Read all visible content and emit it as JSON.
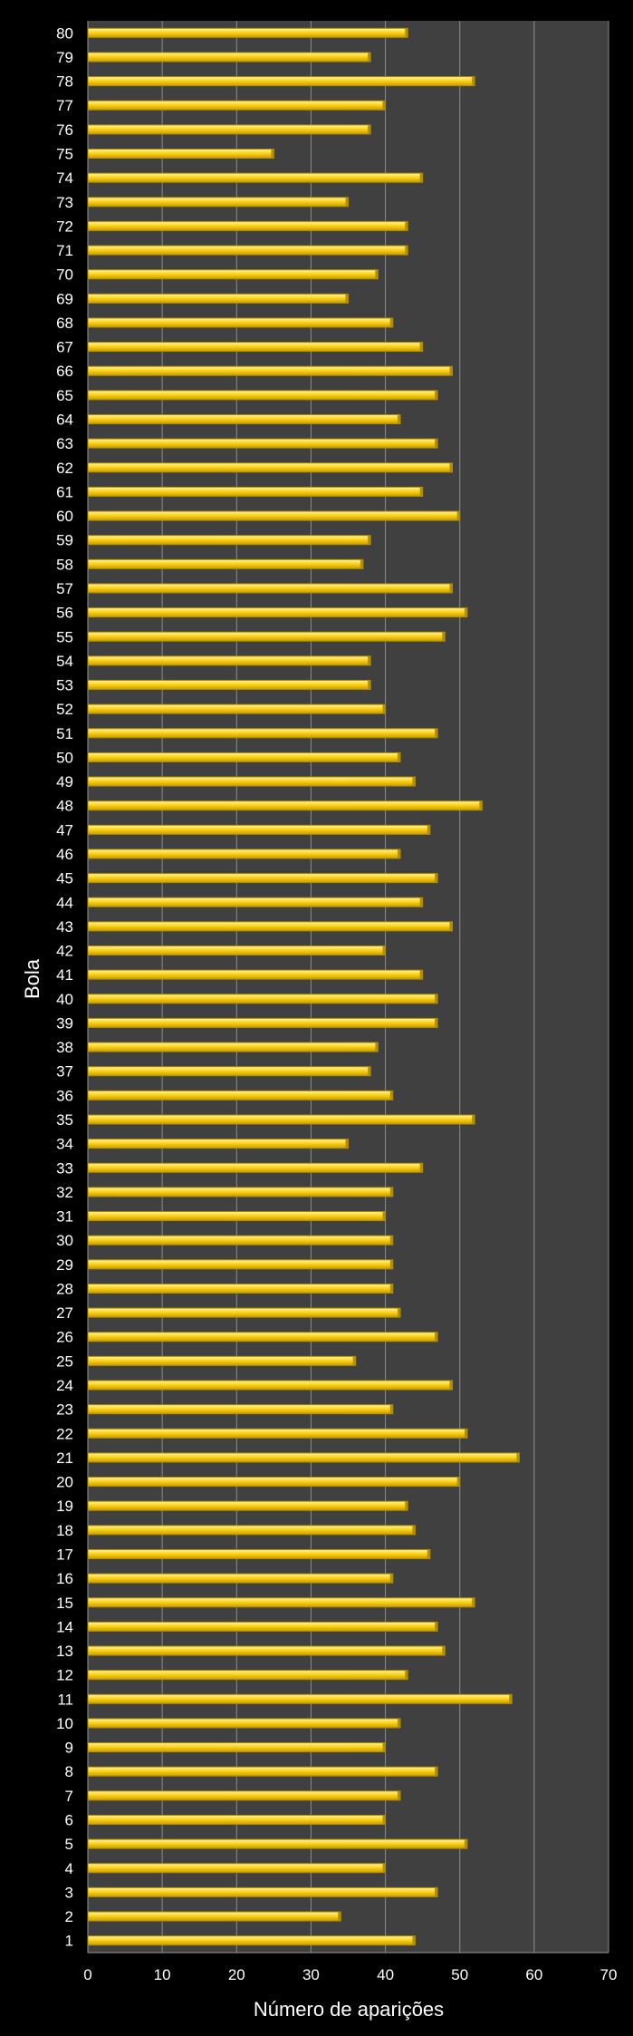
{
  "chart_data": {
    "type": "bar",
    "orientation": "horizontal",
    "title": "",
    "xlabel": "Número de aparições",
    "ylabel": "Bola",
    "xlim": [
      0,
      70
    ],
    "xticks": [
      0,
      10,
      20,
      30,
      40,
      50,
      60,
      70
    ],
    "grid": true,
    "categories": [
      "1",
      "2",
      "3",
      "4",
      "5",
      "6",
      "7",
      "8",
      "9",
      "10",
      "11",
      "12",
      "13",
      "14",
      "15",
      "16",
      "17",
      "18",
      "19",
      "20",
      "21",
      "22",
      "23",
      "24",
      "25",
      "26",
      "27",
      "28",
      "29",
      "30",
      "31",
      "32",
      "33",
      "34",
      "35",
      "36",
      "37",
      "38",
      "39",
      "40",
      "41",
      "42",
      "43",
      "44",
      "45",
      "46",
      "47",
      "48",
      "49",
      "50",
      "51",
      "52",
      "53",
      "54",
      "55",
      "56",
      "57",
      "58",
      "59",
      "60",
      "61",
      "62",
      "63",
      "64",
      "65",
      "66",
      "67",
      "68",
      "69",
      "70",
      "71",
      "72",
      "73",
      "74",
      "75",
      "76",
      "77",
      "78",
      "79",
      "80"
    ],
    "values": [
      44,
      34,
      47,
      40,
      51,
      40,
      42,
      47,
      40,
      42,
      57,
      43,
      48,
      47,
      52,
      41,
      46,
      44,
      43,
      50,
      58,
      51,
      41,
      49,
      36,
      47,
      42,
      41,
      41,
      41,
      40,
      41,
      45,
      35,
      52,
      41,
      38,
      39,
      47,
      47,
      45,
      40,
      49,
      45,
      47,
      42,
      46,
      53,
      44,
      42,
      47,
      40,
      38,
      38,
      48,
      51,
      49,
      37,
      38,
      50,
      45,
      49,
      47,
      42,
      47,
      49,
      45,
      41,
      35,
      39,
      43,
      43,
      35,
      45,
      25,
      38,
      40,
      52,
      38,
      43
    ],
    "colors": {
      "background": "#000000",
      "plot_area": "#404040",
      "grid": "#8c8c8c",
      "bar_fill": "#ffd21a",
      "bar_highlight": "#fff27a",
      "bar_shadow": "#b38f00",
      "text": "#ffffff"
    }
  }
}
